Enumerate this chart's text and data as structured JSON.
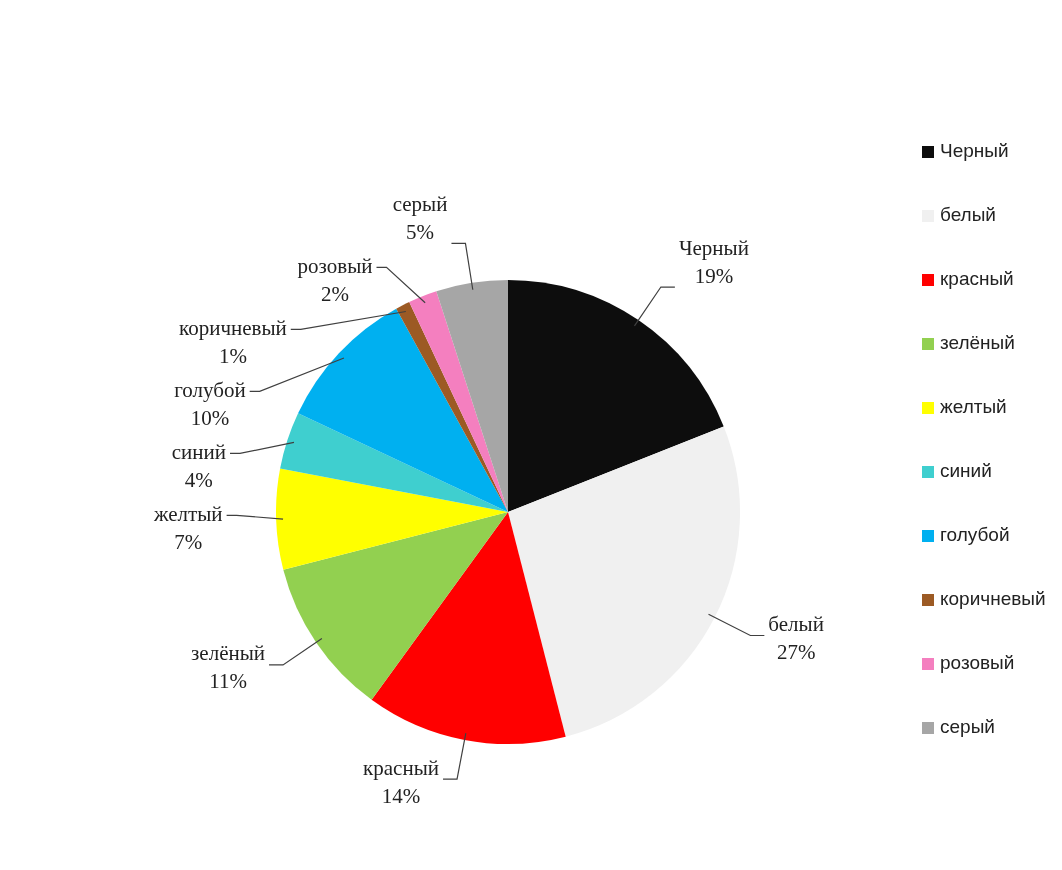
{
  "chart_data": {
    "type": "pie",
    "categories": [
      "Черный",
      "белый",
      "красный",
      "зелёный",
      "желтый",
      "синий",
      "голубой",
      "коричневый",
      "розовый",
      "серый"
    ],
    "values": [
      19,
      27,
      14,
      11,
      7,
      4,
      10,
      1,
      2,
      5
    ],
    "value_labels": [
      "19%",
      "27%",
      "14%",
      "11%",
      "7%",
      "4%",
      "10%",
      "1%",
      "2%",
      "5%"
    ],
    "colors": [
      "#0d0d0d",
      "#f0f0f0",
      "#ff0000",
      "#92d050",
      "#ffff00",
      "#3fcfcf",
      "#00b0f0",
      "#9c5a24",
      "#f47fbf",
      "#a6a6a6"
    ],
    "legend": "right"
  }
}
